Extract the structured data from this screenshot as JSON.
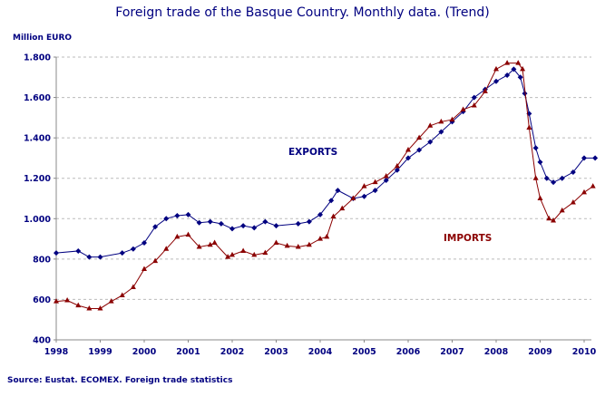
{
  "chart_data": {
    "type": "line",
    "title": "Foreign trade of the Basque Country. Monthly data. (Trend)",
    "ylabel": "Million EURO",
    "source": "Source: Eustat. ECOMEX. Foreign trade statistics",
    "xlim": [
      1998,
      2010.25
    ],
    "ylim": [
      400,
      1800
    ],
    "yticks": [
      400,
      600,
      800,
      1000,
      1200,
      1400,
      1600,
      1800
    ],
    "ytick_labels": [
      "400",
      "600",
      "800",
      "1.000",
      "1.200",
      "1.400",
      "1.600",
      "1.800"
    ],
    "xtick_labels": [
      "1998",
      "1999",
      "2000",
      "2001",
      "2002",
      "2003",
      "2004",
      "2005",
      "2006",
      "2007",
      "2008",
      "2009",
      "2010"
    ],
    "grid": "horizontal dashed",
    "series": [
      {
        "name": "EXPORTS",
        "color": "#000080",
        "marker": "diamond",
        "x": [
          1998,
          1998.5,
          1998.75,
          1999,
          1999.5,
          1999.75,
          2000,
          2000.25,
          2000.5,
          2000.75,
          2001,
          2001.25,
          2001.5,
          2001.75,
          2002,
          2002.25,
          2002.5,
          2002.75,
          2003,
          2003.5,
          2003.75,
          2004,
          2004.25,
          2004.4,
          2004.75,
          2005,
          2005.25,
          2005.5,
          2005.75,
          2006,
          2006.25,
          2006.5,
          2006.75,
          2007,
          2007.25,
          2007.5,
          2007.75,
          2008,
          2008.25,
          2008.4,
          2008.55,
          2008.65,
          2008.75,
          2008.9,
          2009,
          2009.15,
          2009.3,
          2009.5,
          2009.75,
          2010,
          2010.25
        ],
        "y": [
          830,
          840,
          810,
          810,
          830,
          850,
          880,
          960,
          1000,
          1015,
          1020,
          980,
          985,
          975,
          950,
          965,
          955,
          985,
          965,
          975,
          985,
          1020,
          1090,
          1140,
          1100,
          1110,
          1140,
          1190,
          1240,
          1300,
          1340,
          1380,
          1430,
          1480,
          1530,
          1600,
          1640,
          1680,
          1710,
          1740,
          1700,
          1620,
          1520,
          1350,
          1280,
          1200,
          1180,
          1200,
          1230,
          1300,
          1300
        ]
      },
      {
        "name": "IMPORTS",
        "color": "#8B0000",
        "marker": "triangle",
        "x": [
          1998,
          1998.25,
          1998.5,
          1998.75,
          1999,
          1999.25,
          1999.5,
          1999.75,
          2000,
          2000.25,
          2000.5,
          2000.75,
          2001,
          2001.25,
          2001.5,
          2001.6,
          2001.9,
          2002,
          2002.25,
          2002.5,
          2002.75,
          2003,
          2003.25,
          2003.5,
          2003.75,
          2004,
          2004.15,
          2004.3,
          2004.5,
          2004.75,
          2005,
          2005.25,
          2005.5,
          2005.75,
          2006,
          2006.25,
          2006.5,
          2006.75,
          2007,
          2007.25,
          2007.5,
          2007.75,
          2008,
          2008.25,
          2008.5,
          2008.6,
          2008.75,
          2008.9,
          2009,
          2009.2,
          2009.3,
          2009.5,
          2009.75,
          2010,
          2010.2
        ],
        "y": [
          590,
          595,
          570,
          555,
          555,
          590,
          620,
          660,
          750,
          790,
          850,
          910,
          920,
          860,
          870,
          880,
          810,
          820,
          840,
          820,
          830,
          880,
          865,
          860,
          870,
          900,
          910,
          1010,
          1050,
          1100,
          1160,
          1180,
          1210,
          1260,
          1340,
          1400,
          1460,
          1480,
          1490,
          1540,
          1560,
          1630,
          1740,
          1770,
          1770,
          1740,
          1450,
          1200,
          1100,
          1000,
          990,
          1040,
          1080,
          1130,
          1160
        ]
      }
    ]
  }
}
